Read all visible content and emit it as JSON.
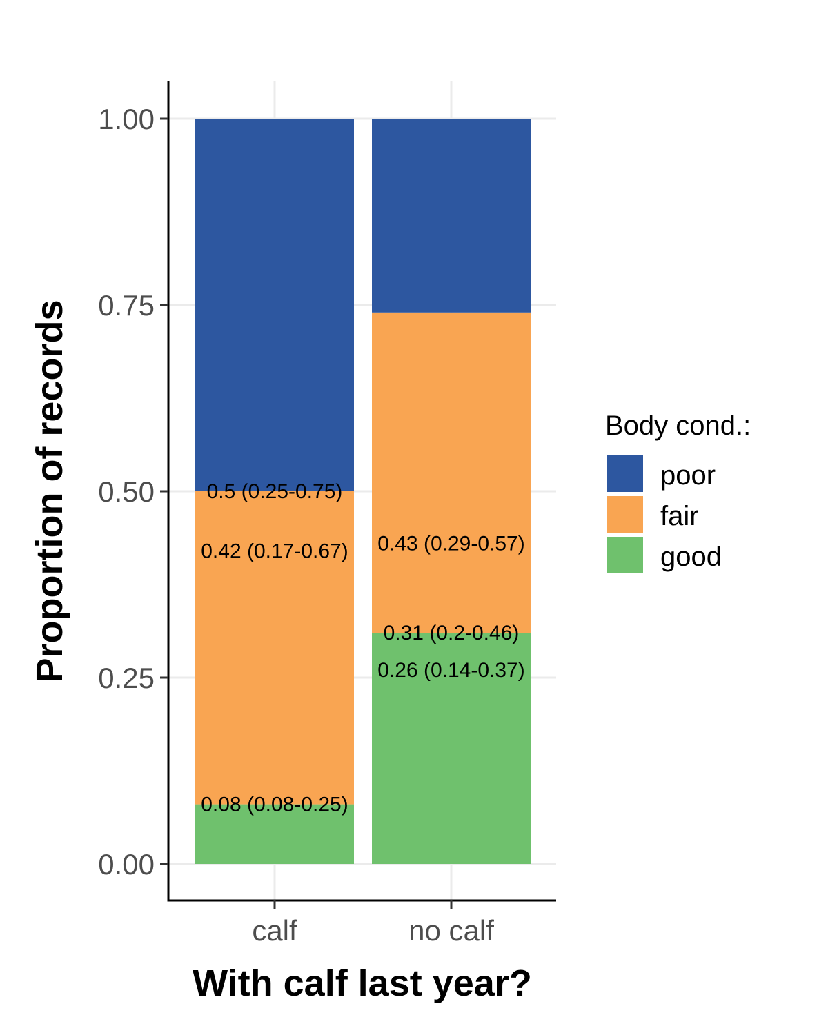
{
  "chart_data": {
    "type": "bar",
    "stacked": true,
    "xlabel": "With calf last year?",
    "ylabel": "Proportion of records",
    "categories": [
      "calf",
      "no calf"
    ],
    "ylim": [
      0,
      1
    ],
    "yticks": [
      "0.00",
      "0.25",
      "0.50",
      "0.75",
      "1.00"
    ],
    "grid": true,
    "legend": {
      "title": "Body cond.:",
      "position": "right"
    },
    "series": [
      {
        "name": "good",
        "color": "#6FC16D",
        "values": [
          0.08,
          0.31
        ],
        "labels": [
          "0.08 (0.08-0.25)",
          "0.31 (0.2-0.46)"
        ]
      },
      {
        "name": "fair",
        "color": "#F9A552",
        "values": [
          0.42,
          0.43
        ],
        "labels": [
          "0.42 (0.17-0.67)",
          "0.43 (0.29-0.57)"
        ]
      },
      {
        "name": "poor",
        "color": "#2D57A0",
        "values": [
          0.5,
          0.26
        ],
        "labels": [
          "0.5 (0.25-0.75)",
          "0.26 (0.14-0.37)"
        ]
      }
    ],
    "legend_order": [
      "poor",
      "fair",
      "good"
    ]
  }
}
